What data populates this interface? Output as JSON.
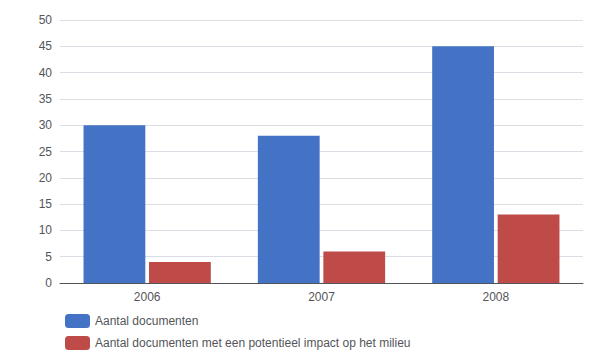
{
  "chart_data": {
    "type": "bar",
    "categories": [
      "2006",
      "2007",
      "2008"
    ],
    "series": [
      {
        "name": "Aantal documenten",
        "color": "#4472C4",
        "values": [
          30,
          28,
          45
        ]
      },
      {
        "name": "Aantal documenten met een potentieel impact op het milieu",
        "color": "#BE4B48",
        "values": [
          4,
          6,
          13
        ]
      }
    ],
    "ylim": [
      0,
      50
    ],
    "yticks": [
      0,
      5,
      10,
      15,
      20,
      25,
      30,
      35,
      40,
      45,
      50
    ],
    "grid": true,
    "legend": "bottom"
  }
}
